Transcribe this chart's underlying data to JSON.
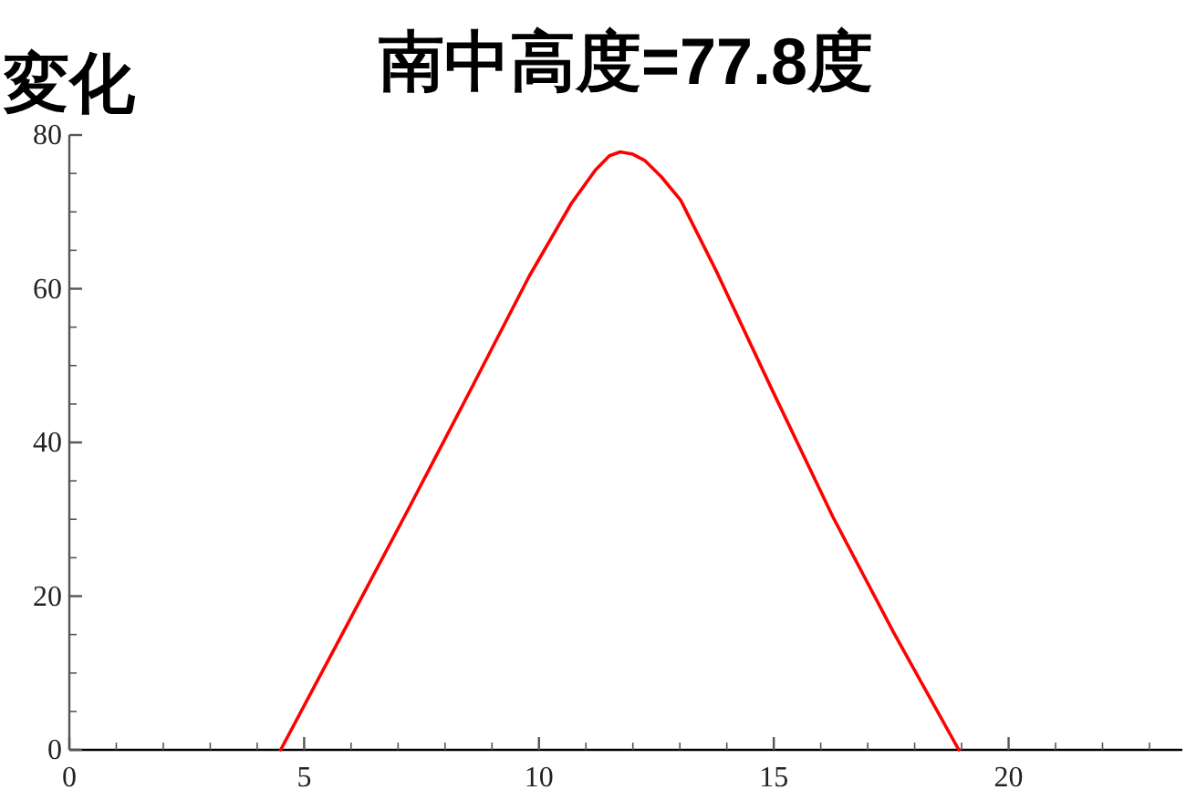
{
  "chart_data": {
    "type": "line",
    "title": "南中高度=77.8度",
    "annotations": [
      "変化"
    ],
    "xlim": [
      0,
      23.7
    ],
    "ylim": [
      0,
      80
    ],
    "xticks": [
      0,
      {
        "value": 1,
        "label": null
      },
      {
        "value": 2,
        "label": null
      },
      {
        "value": 3,
        "label": null
      },
      {
        "value": 4,
        "label": null
      },
      5,
      {
        "value": 6,
        "label": null
      },
      {
        "value": 7,
        "label": null
      },
      {
        "value": 8,
        "label": null
      },
      {
        "value": 9,
        "label": null
      },
      10,
      {
        "value": 11,
        "label": null
      },
      {
        "value": 12,
        "label": null
      },
      {
        "value": 13,
        "label": null
      },
      {
        "value": 14,
        "label": null
      },
      15,
      {
        "value": 16,
        "label": null
      },
      {
        "value": 17,
        "label": null
      },
      {
        "value": 18,
        "label": null
      },
      {
        "value": 19,
        "label": null
      },
      20,
      {
        "value": 21,
        "label": null
      },
      {
        "value": 22,
        "label": null
      },
      {
        "value": 23,
        "label": null
      }
    ],
    "yticks": [
      0,
      {
        "value": 5,
        "label": null
      },
      {
        "value": 10,
        "label": null
      },
      {
        "value": 15,
        "label": null
      },
      20,
      {
        "value": 25,
        "label": null
      },
      {
        "value": 30,
        "label": null
      },
      {
        "value": 35,
        "label": null
      },
      40,
      {
        "value": 45,
        "label": null
      },
      {
        "value": 50,
        "label": null
      },
      {
        "value": 55,
        "label": null
      },
      60,
      {
        "value": 65,
        "label": null
      },
      {
        "value": 70,
        "label": null
      },
      {
        "value": 75,
        "label": null
      },
      80
    ],
    "series": [
      {
        "color": "#ff0000",
        "x": [
          4.5,
          5.9,
          7.2,
          8.49,
          9.79,
          10.69,
          11.21,
          11.5,
          11.73,
          12.0,
          12.25,
          12.6,
          13.02,
          13.8,
          14.96,
          16.26,
          17.55,
          18.94
        ],
        "values": [
          0,
          16.1,
          31.1,
          46.2,
          61.6,
          71.1,
          75.5,
          77.3,
          77.8,
          77.5,
          76.7,
          74.6,
          71.5,
          62.0,
          46.9,
          30.3,
          15.3,
          0
        ]
      }
    ]
  }
}
